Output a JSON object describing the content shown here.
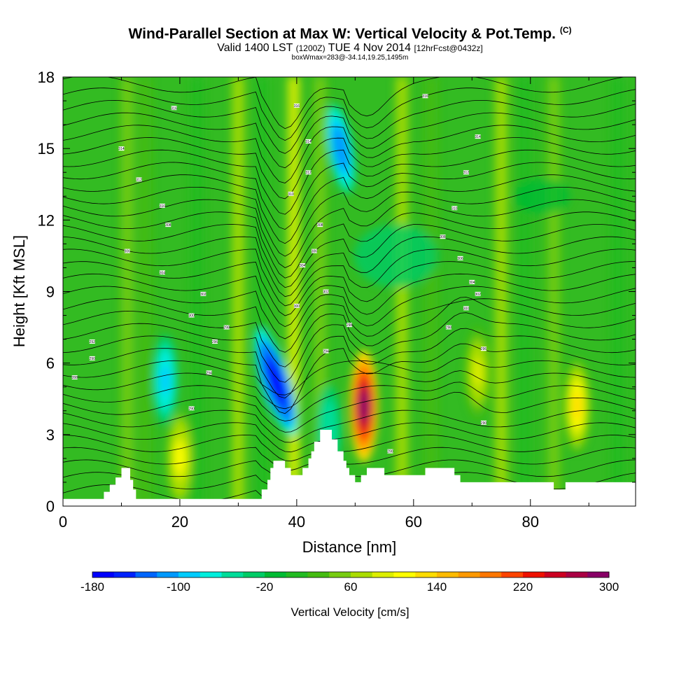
{
  "chart_data": {
    "type": "heatmap",
    "title": "Wind-Parallel Section at Max W: Vertical Velocity & Pot.Temp.",
    "title_mark": "(C)",
    "subtitle_main": "Valid 1400 LST",
    "subtitle_small": "(1200Z)",
    "subtitle_rest": "TUE 4 Nov 2014",
    "subtitle_forecast": "[12hrFcst@0432z]",
    "info_line": "boxWmax=283@-34.14,19.25,1495m",
    "xlabel": "Distance [nm]",
    "ylabel": "Height [Kft MSL]",
    "xlim": [
      0,
      98
    ],
    "ylim": [
      0,
      18
    ],
    "x_ticks": [
      0,
      20,
      40,
      60,
      80
    ],
    "y_ticks": [
      0,
      3,
      6,
      9,
      12,
      15,
      18
    ],
    "colorbar": {
      "label": "Vertical Velocity [cm/s]",
      "tick_labels": [
        "-180",
        "-100",
        "-20",
        "60",
        "140",
        "220",
        "300"
      ],
      "colors": [
        "#0000ff",
        "#0022ff",
        "#0066ff",
        "#0099ff",
        "#00ccff",
        "#00eedd",
        "#00dd99",
        "#00cc66",
        "#00bb33",
        "#22bb22",
        "#44bb11",
        "#77cc11",
        "#aadd00",
        "#ddee00",
        "#ffff00",
        "#ffdd00",
        "#ffbb00",
        "#ff9900",
        "#ff7700",
        "#ff4400",
        "#ee1100",
        "#cc0022",
        "#aa0044",
        "#880066"
      ]
    },
    "velocity_features": [
      {
        "x": 88,
        "z": 4.2,
        "w": 130
      },
      {
        "x": 71,
        "z": 5.6,
        "w": 90
      },
      {
        "x": 20,
        "z": 2.0,
        "w": 110
      },
      {
        "x": 17.5,
        "z": 5.3,
        "w": -90
      },
      {
        "x": 51.5,
        "z": 4.2,
        "w": 283
      },
      {
        "x": 36.5,
        "z": 5.2,
        "w": -180
      },
      {
        "x": 47.5,
        "z": 15.0,
        "w": -120
      },
      {
        "x": 45.5,
        "z": 3.2,
        "w": -60
      }
    ],
    "theta_contour_labels": [
      {
        "x": 2,
        "z": 5.4,
        "text": "288"
      },
      {
        "x": 5,
        "z": 6.2,
        "text": "290"
      },
      {
        "x": 5,
        "z": 6.9,
        "text": "292"
      },
      {
        "x": 22,
        "z": 4.1,
        "text": "290"
      },
      {
        "x": 25,
        "z": 5.6,
        "text": "294"
      },
      {
        "x": 26,
        "z": 6.9,
        "text": "296"
      },
      {
        "x": 28,
        "z": 7.5,
        "text": "298"
      },
      {
        "x": 22,
        "z": 8.0,
        "text": "300"
      },
      {
        "x": 24,
        "z": 8.9,
        "text": "302"
      },
      {
        "x": 17,
        "z": 9.8,
        "text": "304"
      },
      {
        "x": 11,
        "z": 10.7,
        "text": "306"
      },
      {
        "x": 18,
        "z": 11.8,
        "text": "308"
      },
      {
        "x": 17,
        "z": 12.6,
        "text": "310"
      },
      {
        "x": 13,
        "z": 13.7,
        "text": "312"
      },
      {
        "x": 10,
        "z": 15.0,
        "text": "314"
      },
      {
        "x": 19,
        "z": 16.7,
        "text": "316"
      },
      {
        "x": 45,
        "z": 6.5,
        "text": "294"
      },
      {
        "x": 49,
        "z": 7.6,
        "text": "298"
      },
      {
        "x": 40,
        "z": 8.4,
        "text": "300"
      },
      {
        "x": 45,
        "z": 9.0,
        "text": "302"
      },
      {
        "x": 41,
        "z": 10.1,
        "text": "304"
      },
      {
        "x": 43,
        "z": 10.7,
        "text": "306"
      },
      {
        "x": 44,
        "z": 11.8,
        "text": "308"
      },
      {
        "x": 39,
        "z": 13.1,
        "text": "310"
      },
      {
        "x": 42,
        "z": 14.0,
        "text": "312"
      },
      {
        "x": 42,
        "z": 15.3,
        "text": "314"
      },
      {
        "x": 40,
        "z": 16.8,
        "text": "316"
      },
      {
        "x": 56,
        "z": 2.3,
        "text": "290"
      },
      {
        "x": 72,
        "z": 3.5,
        "text": "290"
      },
      {
        "x": 72,
        "z": 6.6,
        "text": "296"
      },
      {
        "x": 66,
        "z": 7.5,
        "text": "298"
      },
      {
        "x": 69,
        "z": 8.3,
        "text": "300"
      },
      {
        "x": 71,
        "z": 8.9,
        "text": "302"
      },
      {
        "x": 70,
        "z": 9.4,
        "text": "304"
      },
      {
        "x": 68,
        "z": 10.4,
        "text": "306"
      },
      {
        "x": 65,
        "z": 11.3,
        "text": "308"
      },
      {
        "x": 67,
        "z": 12.5,
        "text": "310"
      },
      {
        "x": 69,
        "z": 14.0,
        "text": "312"
      },
      {
        "x": 71,
        "z": 15.5,
        "text": "314"
      },
      {
        "x": 62,
        "z": 17.2,
        "text": "316"
      }
    ],
    "terrain_profile": [
      [
        0,
        0.3
      ],
      [
        7,
        0.3
      ],
      [
        7,
        0.6
      ],
      [
        8,
        0.6
      ],
      [
        8,
        0.9
      ],
      [
        9,
        0.9
      ],
      [
        9,
        1.2
      ],
      [
        10,
        1.2
      ],
      [
        10,
        1.6
      ],
      [
        11.5,
        1.6
      ],
      [
        11.5,
        1.1
      ],
      [
        12,
        1.1
      ],
      [
        12,
        0.7
      ],
      [
        12.5,
        0.7
      ],
      [
        12.5,
        0.3
      ],
      [
        34,
        0.3
      ],
      [
        34,
        0.7
      ],
      [
        35,
        0.7
      ],
      [
        35,
        1.1
      ],
      [
        35.5,
        1.1
      ],
      [
        35.5,
        1.6
      ],
      [
        36,
        1.6
      ],
      [
        36,
        1.9
      ],
      [
        38,
        1.9
      ],
      [
        38,
        1.6
      ],
      [
        39,
        1.6
      ],
      [
        39,
        1.3
      ],
      [
        41,
        1.3
      ],
      [
        41,
        1.6
      ],
      [
        42,
        1.6
      ],
      [
        42,
        2.0
      ],
      [
        42.5,
        2.0
      ],
      [
        42.5,
        2.3
      ],
      [
        43,
        2.3
      ],
      [
        43,
        2.7
      ],
      [
        44,
        2.7
      ],
      [
        44,
        3.2
      ],
      [
        46,
        3.2
      ],
      [
        46,
        2.8
      ],
      [
        47,
        2.8
      ],
      [
        47,
        2.3
      ],
      [
        48,
        2.3
      ],
      [
        48,
        1.9
      ],
      [
        48.5,
        1.9
      ],
      [
        48.5,
        1.6
      ],
      [
        49,
        1.6
      ],
      [
        49,
        1.3
      ],
      [
        50,
        1.3
      ],
      [
        50,
        1.0
      ],
      [
        51,
        1.0
      ],
      [
        51,
        1.3
      ],
      [
        52,
        1.3
      ],
      [
        52,
        1.6
      ],
      [
        55,
        1.6
      ],
      [
        55,
        1.3
      ],
      [
        62,
        1.3
      ],
      [
        62,
        1.6
      ],
      [
        67,
        1.6
      ],
      [
        67,
        1.3
      ],
      [
        68,
        1.3
      ],
      [
        68,
        1.0
      ],
      [
        84,
        1.0
      ],
      [
        84,
        0.7
      ],
      [
        86,
        0.7
      ],
      [
        86,
        1.0
      ],
      [
        98,
        1.0
      ]
    ]
  }
}
